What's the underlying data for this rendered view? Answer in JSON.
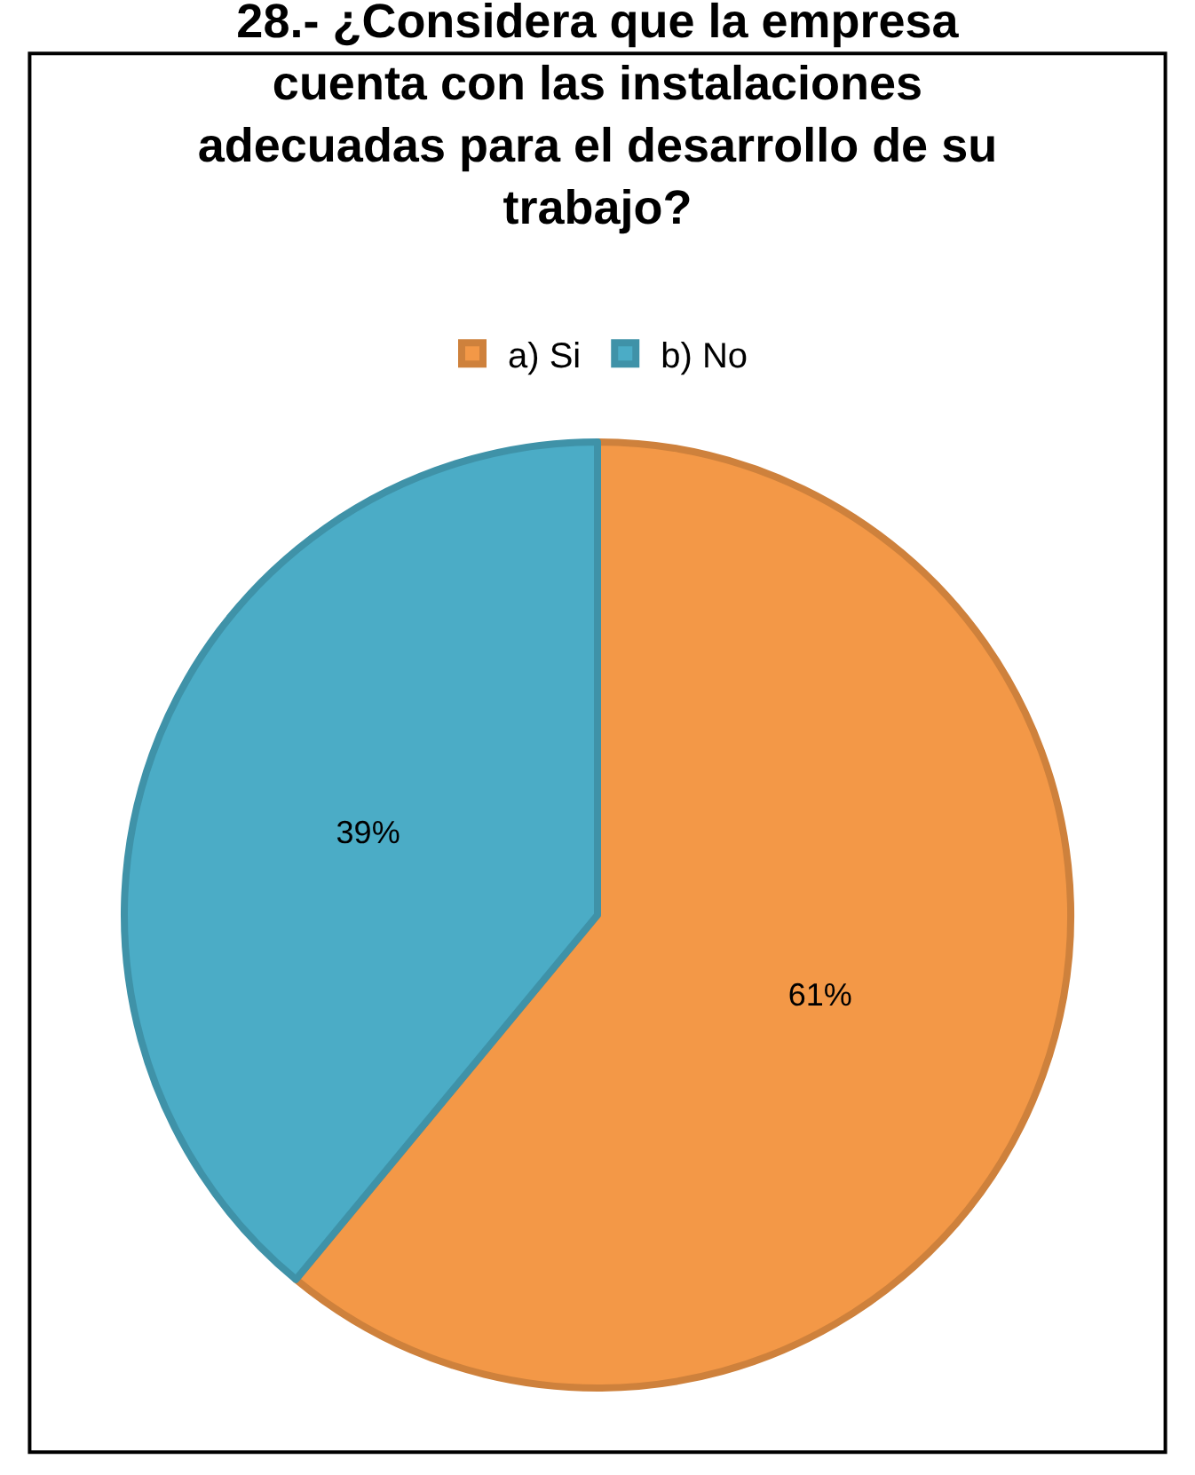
{
  "chart_data": {
    "type": "pie",
    "title": "28.- ¿Considera que la empresa cuenta con las instalaciones adecuadas para el desarrollo de su trabajo?",
    "categories": [
      "a) Si",
      "b) No"
    ],
    "values": [
      61,
      39
    ],
    "value_labels": [
      "61%",
      "39%"
    ],
    "colors": [
      "#f39847",
      "#4bacc6"
    ],
    "legend": "top"
  }
}
